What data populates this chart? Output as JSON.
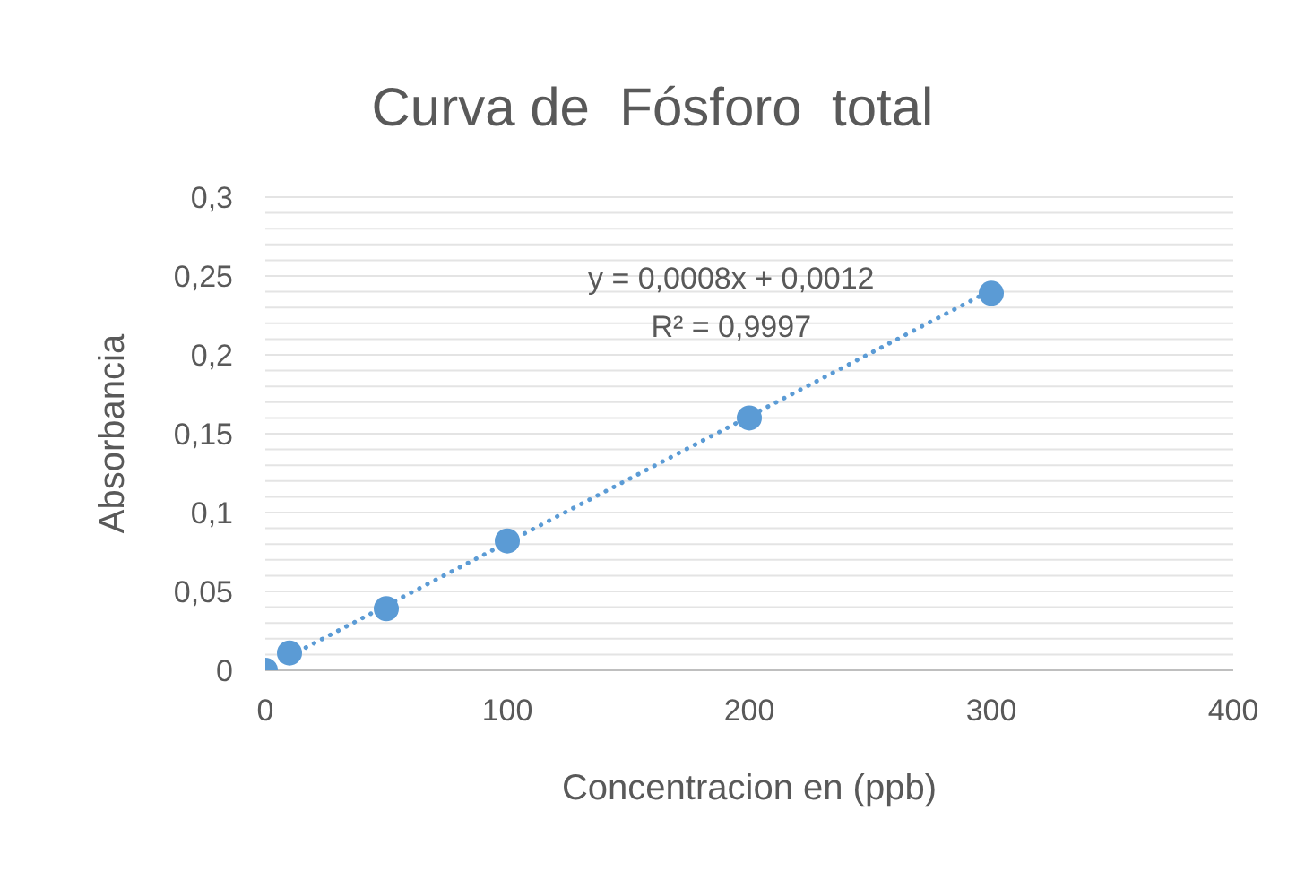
{
  "chart_data": {
    "type": "scatter",
    "title": "Curva de  Fósforo  total",
    "xlabel": "Concentracion en (ppb)",
    "ylabel": "Absorbancia",
    "x": [
      0,
      10,
      50,
      100,
      200,
      300
    ],
    "series": [
      {
        "color": "#5b9bd5",
        "values": [
          0,
          0.011,
          0.039,
          0.082,
          0.16,
          0.239
        ]
      },
      {
        "type": "line",
        "x": [
          0,
          300
        ],
        "color": "#5b9bd5",
        "line_style": "dotted",
        "marker": "none",
        "values": [
          0.001,
          0.241
        ]
      }
    ],
    "annotations": [
      "y = 0,0008x + 0,0012",
      "R² = 0,9997"
    ],
    "marker": "circle",
    "xlim": [
      0,
      400
    ],
    "xticks": [
      0,
      100,
      200,
      300,
      400
    ],
    "ylim": [
      0,
      0.3
    ],
    "yticks": [
      0,
      {
        "value": 0.01,
        "label": null
      },
      {
        "value": 0.02,
        "label": null
      },
      {
        "value": 0.03,
        "label": null
      },
      {
        "value": 0.04,
        "label": null
      },
      {
        "value": 0.05,
        "label": "0,05"
      },
      {
        "value": 0.06,
        "label": null
      },
      {
        "value": 0.07,
        "label": null
      },
      {
        "value": 0.08,
        "label": null
      },
      {
        "value": 0.09,
        "label": null
      },
      {
        "value": 0.1,
        "label": "0,1"
      },
      {
        "value": 0.11,
        "label": null
      },
      {
        "value": 0.12,
        "label": null
      },
      {
        "value": 0.13,
        "label": null
      },
      {
        "value": 0.14,
        "label": null
      },
      {
        "value": 0.15,
        "label": "0,15"
      },
      {
        "value": 0.16,
        "label": null
      },
      {
        "value": 0.17,
        "label": null
      },
      {
        "value": 0.18,
        "label": null
      },
      {
        "value": 0.19,
        "label": null
      },
      {
        "value": 0.2,
        "label": "0,2"
      },
      {
        "value": 0.21,
        "label": null
      },
      {
        "value": 0.22,
        "label": null
      },
      {
        "value": 0.23,
        "label": null
      },
      {
        "value": 0.24,
        "label": null
      },
      {
        "value": 0.25,
        "label": "0,25"
      },
      {
        "value": 0.26,
        "label": null
      },
      {
        "value": 0.27,
        "label": null
      },
      {
        "value": 0.28,
        "label": null
      },
      {
        "value": 0.29,
        "label": null
      },
      {
        "value": 0.3,
        "label": "0,3"
      }
    ],
    "grid": "y",
    "legend": false
  }
}
